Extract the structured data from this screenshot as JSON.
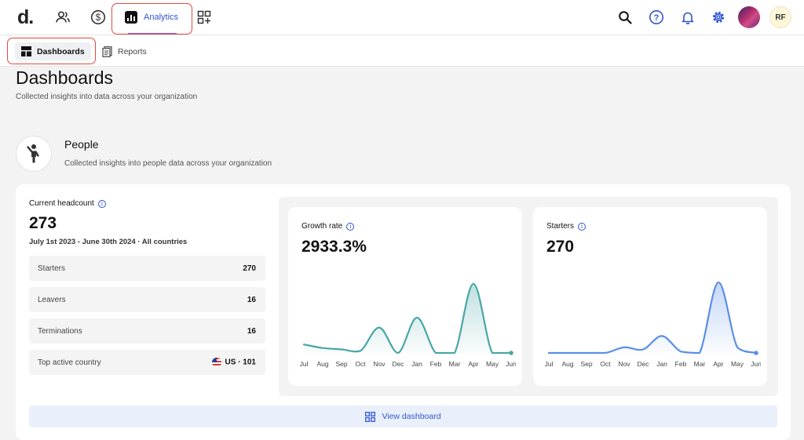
{
  "app": {
    "logo": "d."
  },
  "nav": {
    "analytics_label": "Analytics"
  },
  "user": {
    "initials": "RF"
  },
  "subnav": {
    "dashboards_label": "Dashboards",
    "reports_label": "Reports"
  },
  "page": {
    "title": "Dashboards",
    "subtitle": "Collected insights into data across your organization"
  },
  "section": {
    "title": "People",
    "subtitle": "Collected insights into people data across your organization"
  },
  "headcount": {
    "label": "Current headcount",
    "value": "273",
    "range": "July 1st 2023 - June 30th 2024 · All countries",
    "rows": [
      {
        "label": "Starters",
        "value": "270"
      },
      {
        "label": "Leavers",
        "value": "16"
      },
      {
        "label": "Terminations",
        "value": "16"
      },
      {
        "label": "Top active country",
        "value": "US · 101"
      }
    ]
  },
  "growth": {
    "label": "Growth rate",
    "value": "2933.3%"
  },
  "starters": {
    "label": "Starters",
    "value": "270"
  },
  "months": [
    "Jul",
    "Aug",
    "Sep",
    "Oct",
    "Nov",
    "Dec",
    "Jan",
    "Feb",
    "Mar",
    "Apr",
    "May",
    "Jun"
  ],
  "colors": {
    "accent": "#2f55d4",
    "teal": "#4aa6a6",
    "blue": "#5b8ee8",
    "highlight": "#e5483c"
  },
  "chart_data": [
    {
      "type": "area",
      "title": "Growth rate",
      "categories": [
        "Jul",
        "Aug",
        "Sep",
        "Oct",
        "Nov",
        "Dec",
        "Jan",
        "Feb",
        "Mar",
        "Apr",
        "May",
        "Jun"
      ],
      "values": [
        0.12,
        0.07,
        0.05,
        0.03,
        0.36,
        0.0,
        0.5,
        0.0,
        0.0,
        0.98,
        0.0,
        0.0
      ],
      "ylim": [
        0,
        1
      ]
    },
    {
      "type": "area",
      "title": "Starters",
      "categories": [
        "Jul",
        "Aug",
        "Sep",
        "Oct",
        "Nov",
        "Dec",
        "Jan",
        "Feb",
        "Mar",
        "Apr",
        "May",
        "Jun"
      ],
      "values": [
        0.0,
        0.0,
        0.0,
        0.0,
        0.08,
        0.05,
        0.24,
        0.02,
        0.0,
        1.0,
        0.08,
        0.0
      ],
      "ylim": [
        0,
        1
      ]
    }
  ],
  "view": {
    "label": "View dashboard"
  }
}
